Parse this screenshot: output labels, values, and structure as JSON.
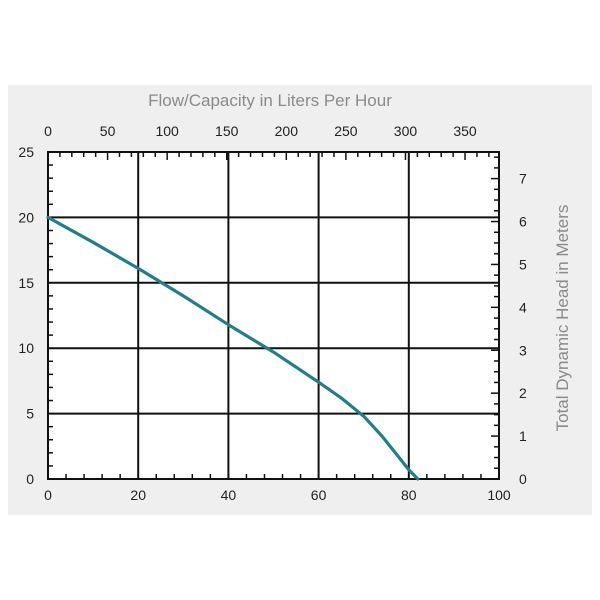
{
  "colors": {
    "panel_bg": "#efefef",
    "plot_bg": "#ffffff",
    "grid": "#111111",
    "curve": "#1f7f8c",
    "axis_title": "#8a8a8a",
    "tick_text": "#222222"
  },
  "chart_data": {
    "type": "line",
    "grid": true,
    "axes": {
      "x_bottom": {
        "label": "",
        "range": [
          0,
          100
        ],
        "ticks": [
          0,
          20,
          40,
          60,
          80,
          100
        ]
      },
      "x_top": {
        "label": "Flow/Capacity in Liters Per Hour",
        "range": [
          0,
          378.5
        ],
        "ticks": [
          0,
          50,
          100,
          150,
          200,
          250,
          300,
          350
        ]
      },
      "y_left": {
        "label": "",
        "range": [
          0,
          25
        ],
        "ticks": [
          0,
          5,
          10,
          15,
          20,
          25
        ]
      },
      "y_right": {
        "label": "Total Dynamic Head in Meters",
        "range": [
          0,
          7.62
        ],
        "ticks": [
          0,
          1,
          2,
          3,
          4,
          5,
          6,
          7
        ]
      }
    },
    "series": [
      {
        "name": "",
        "x": [
          0,
          10,
          20,
          30,
          40,
          50,
          60,
          65,
          70,
          74,
          77,
          80,
          82
        ],
        "y": [
          20,
          18.1,
          16.1,
          14,
          11.8,
          9.7,
          7.4,
          6.2,
          4.8,
          3.3,
          2.0,
          0.7,
          0
        ]
      }
    ]
  }
}
